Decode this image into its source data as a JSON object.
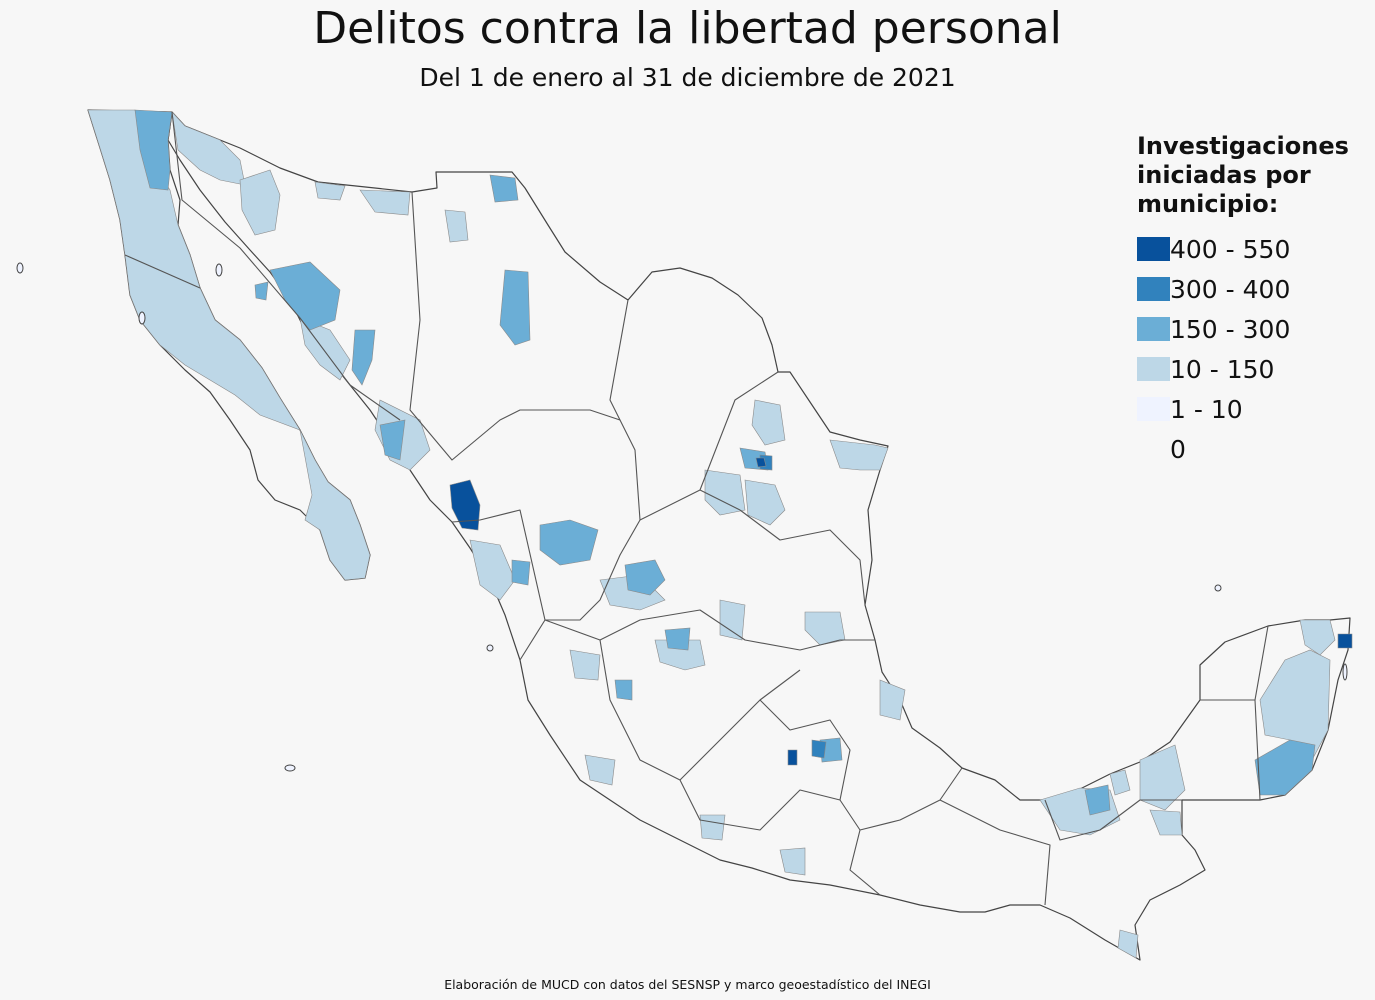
{
  "title": "Delitos contra la libertad personal",
  "subtitle": "Del 1 de enero al 31 de diciembre de 2021",
  "legend": {
    "title": "Investigaciones iniciadas por municipio:",
    "items": [
      {
        "label": "400 - 550",
        "color": "#08519c"
      },
      {
        "label": "300 - 400",
        "color": "#3182bd"
      },
      {
        "label": "150 - 300",
        "color": "#6baed6"
      },
      {
        "label": "10 - 150",
        "color": "#bdd7e7"
      },
      {
        "label": "1 - 10",
        "color": "#eff3ff"
      },
      {
        "label": "0",
        "color": "#f7f7f7"
      }
    ]
  },
  "source": "Elaboración de MUCD con datos del SESNSP y marco geoestadístico del INEGI"
}
